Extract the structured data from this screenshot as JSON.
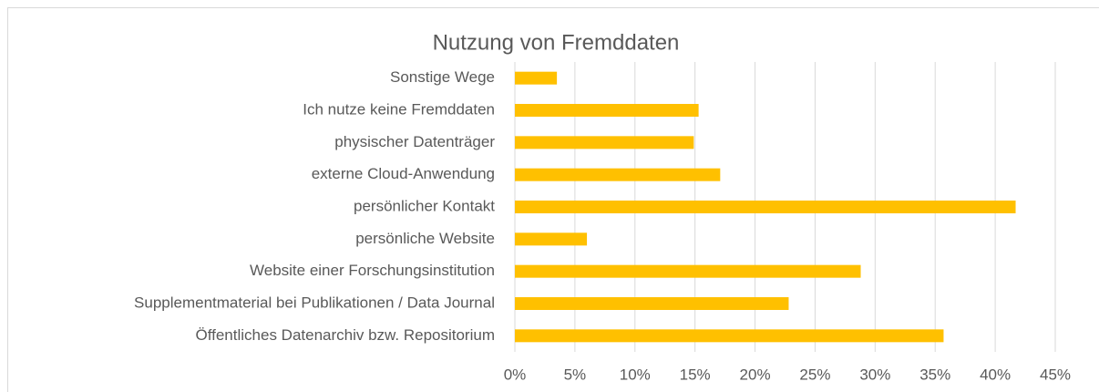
{
  "chart_data": {
    "type": "bar",
    "orientation": "horizontal",
    "title": "Nutzung von Fremddaten",
    "categories": [
      "Sonstige Wege",
      "Ich nutze keine Fremddaten",
      "physischer Datenträger",
      "externe Cloud-Anwendung",
      "persönlicher Kontakt",
      "persönliche Website",
      "Website einer Forschungsinstitution",
      "Supplementmaterial bei Publikationen / Data Journal",
      "Öffentliches Datenarchiv bzw. Repositorium"
    ],
    "values": [
      3.5,
      15.3,
      14.9,
      17.1,
      41.7,
      6.0,
      28.8,
      22.8,
      35.7
    ],
    "color": "#ffc000",
    "xlim": [
      0,
      45
    ],
    "xticks": [
      {
        "value": 0,
        "label": "0%"
      },
      {
        "value": 5,
        "label": "5%"
      },
      {
        "value": 10,
        "label": "10%"
      },
      {
        "value": 15,
        "label": "15%"
      },
      {
        "value": 20,
        "label": "20%"
      },
      {
        "value": 25,
        "label": "25%"
      },
      {
        "value": 30,
        "label": "30%"
      },
      {
        "value": 35,
        "label": "35%"
      },
      {
        "value": 40,
        "label": "40%"
      },
      {
        "value": 45,
        "label": "45%"
      }
    ],
    "grid": true
  }
}
